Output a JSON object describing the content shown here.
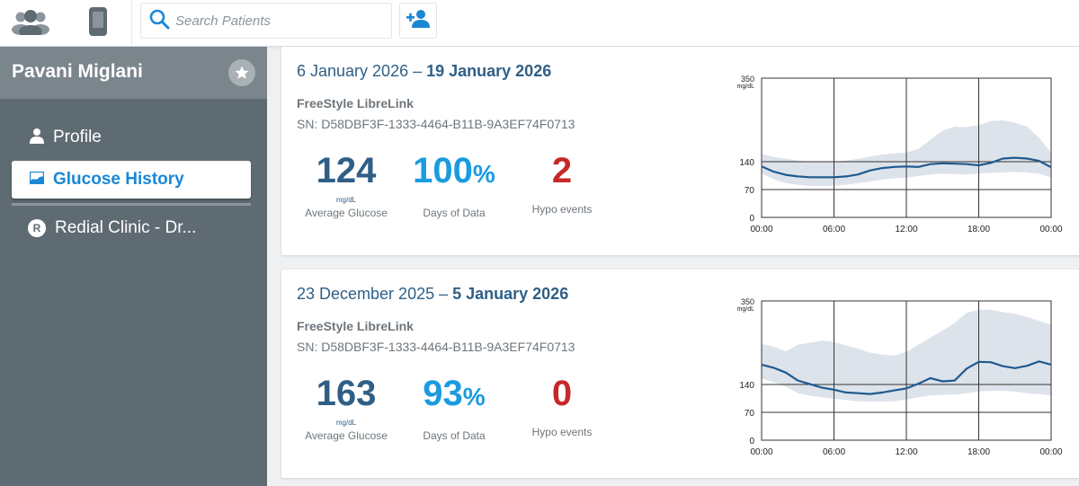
{
  "search": {
    "placeholder": "Search Patients"
  },
  "patient": {
    "name": "Pavani Miglani"
  },
  "nav": {
    "items": [
      {
        "label": "Profile"
      },
      {
        "label": "Glucose History"
      },
      {
        "label": "Redial Clinic - Dr..."
      }
    ],
    "clinic_badge": "R"
  },
  "colors": {
    "accent": "#1a87d6",
    "dark_blue": "#2f5f86",
    "red": "#c62828",
    "sidebar": "#5f6b73"
  },
  "reports": [
    {
      "date_start": "6 January 2026 – ",
      "date_end": "19 January 2026",
      "device": "FreeStyle LibreLink",
      "sn": "SN: D58DBF3F-1333-4464-B11B-9A3EF74F0713",
      "avg_glucose": "124",
      "avg_unit": "mg/dL",
      "avg_label": "Average Glucose",
      "days_value": "100",
      "days_pct": "%",
      "days_label": "Days of Data",
      "hypo_value": "2",
      "hypo_label": "Hypo events"
    },
    {
      "date_start": "23 December 2025 – ",
      "date_end": "5 January 2026",
      "device": "FreeStyle LibreLink",
      "sn": "SN: D58DBF3F-1333-4464-B11B-9A3EF74F0713",
      "avg_glucose": "163",
      "avg_unit": "mg/dL",
      "avg_label": "Average Glucose",
      "days_value": "93",
      "days_pct": "%",
      "days_label": "Days of Data",
      "hypo_value": "0",
      "hypo_label": "Hypo events"
    }
  ],
  "chart_data": [
    {
      "type": "area",
      "title": "",
      "ylabel": "mg/dL",
      "y_unit": "mg/dL",
      "ylim": [
        0,
        350
      ],
      "xlim": [
        0,
        24
      ],
      "y_ticks": [
        0,
        70,
        140,
        350
      ],
      "x_ticks": [
        0,
        6,
        12,
        18,
        24
      ],
      "x_tick_labels": [
        "00:00",
        "06:00",
        "12:00",
        "18:00",
        "00:00"
      ],
      "target_lines": [
        70,
        140
      ],
      "x": [
        0,
        1,
        2,
        3,
        4,
        5,
        6,
        7,
        8,
        9,
        10,
        11,
        12,
        13,
        14,
        15,
        16,
        17,
        18,
        19,
        20,
        21,
        22,
        23,
        24
      ],
      "series": [
        {
          "name": "Median",
          "values": [
            128,
            115,
            107,
            103,
            101,
            101,
            101,
            103,
            108,
            118,
            124,
            127,
            128,
            127,
            134,
            136,
            135,
            134,
            131,
            137,
            148,
            150,
            148,
            142,
            126
          ]
        },
        {
          "name": "Upper band",
          "values": [
            160,
            152,
            148,
            143,
            140,
            140,
            141,
            143,
            147,
            153,
            158,
            161,
            163,
            172,
            195,
            218,
            228,
            227,
            232,
            242,
            244,
            238,
            228,
            200,
            162
          ]
        },
        {
          "name": "Lower band",
          "values": [
            110,
            96,
            86,
            82,
            79,
            79,
            80,
            82,
            86,
            90,
            95,
            98,
            100,
            104,
            108,
            110,
            109,
            108,
            110,
            112,
            113,
            114,
            113,
            110,
            100
          ]
        }
      ]
    },
    {
      "type": "area",
      "title": "",
      "ylabel": "mg/dL",
      "y_unit": "mg/dL",
      "ylim": [
        0,
        350
      ],
      "xlim": [
        0,
        24
      ],
      "y_ticks": [
        0,
        70,
        140,
        350
      ],
      "x_ticks": [
        0,
        6,
        12,
        18,
        24
      ],
      "x_tick_labels": [
        "00:00",
        "06:00",
        "12:00",
        "18:00",
        "00:00"
      ],
      "target_lines": [
        70,
        140
      ],
      "x": [
        0,
        1,
        2,
        3,
        4,
        5,
        6,
        7,
        8,
        9,
        10,
        11,
        12,
        13,
        14,
        15,
        16,
        17,
        18,
        19,
        20,
        21,
        22,
        23,
        24
      ],
      "series": [
        {
          "name": "Median",
          "values": [
            190,
            182,
            170,
            150,
            141,
            132,
            127,
            120,
            118,
            116,
            120,
            125,
            130,
            142,
            156,
            148,
            150,
            180,
            197,
            196,
            186,
            181,
            187,
            198,
            190
          ]
        },
        {
          "name": "Upper band",
          "values": [
            242,
            235,
            223,
            240,
            245,
            250,
            247,
            238,
            230,
            220,
            215,
            213,
            222,
            240,
            258,
            275,
            295,
            320,
            328,
            328,
            322,
            318,
            310,
            300,
            290
          ]
        },
        {
          "name": "Lower band",
          "values": [
            155,
            146,
            135,
            118,
            112,
            108,
            104,
            101,
            98,
            97,
            97,
            98,
            102,
            108,
            113,
            114,
            115,
            118,
            122,
            124,
            124,
            122,
            118,
            116,
            112
          ]
        }
      ]
    }
  ]
}
